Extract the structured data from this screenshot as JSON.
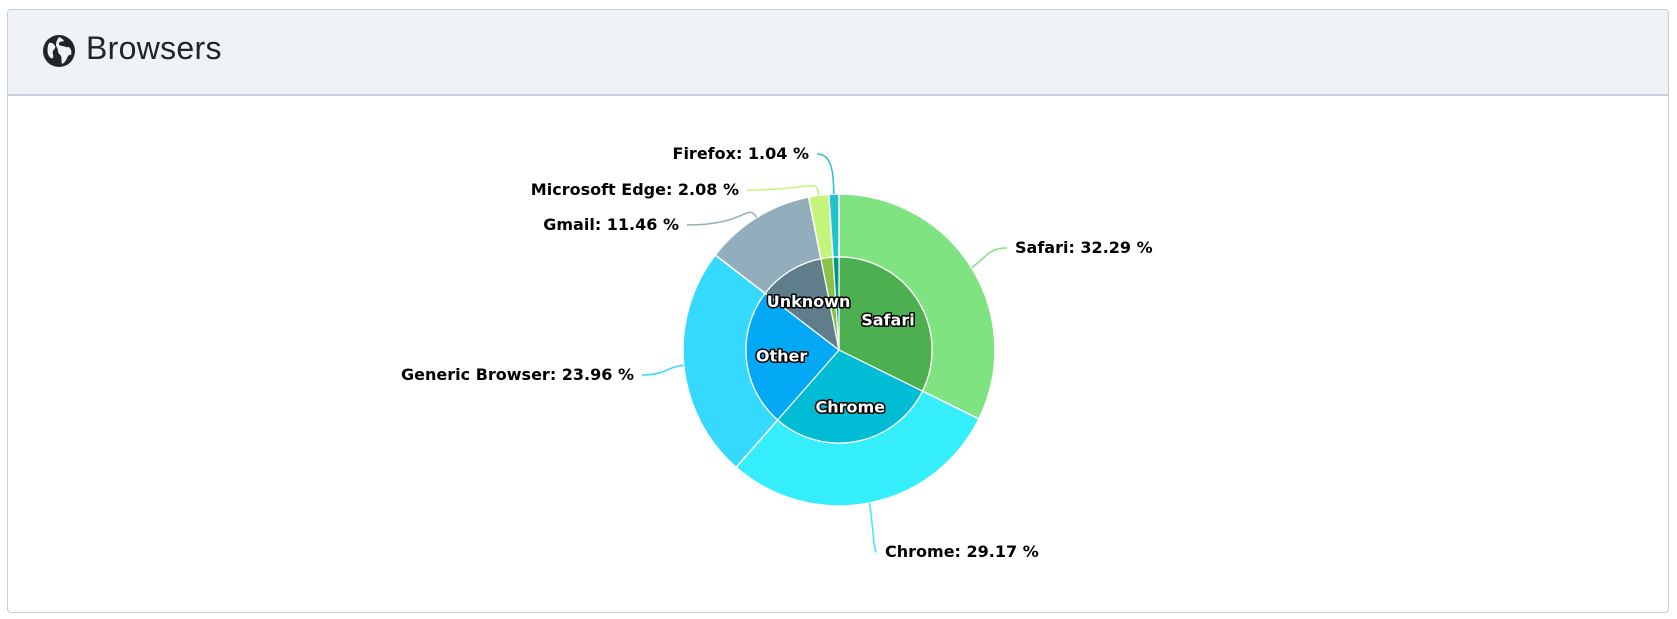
{
  "header": {
    "title": "Browsers",
    "icon": "globe-icon"
  },
  "chart_data": {
    "type": "pie",
    "variant": "nested-donut",
    "outer": {
      "unit": "%",
      "slices": [
        {
          "name": "Safari",
          "label": "Safari: 32.29 %",
          "value": 32.29,
          "color": "#7fe381"
        },
        {
          "name": "Chrome",
          "label": "Chrome: 29.17 %",
          "value": 29.17,
          "color": "#35eefc"
        },
        {
          "name": "Generic Browser",
          "label": "Generic Browser: 23.96 %",
          "value": 23.96,
          "color": "#35d9fe"
        },
        {
          "name": "Gmail",
          "label": "Gmail: 11.46 %",
          "value": 11.46,
          "color": "#92aebc"
        },
        {
          "name": "Microsoft Edge",
          "label": "Microsoft Edge: 2.08 %",
          "value": 2.08,
          "color": "#c3f57b"
        },
        {
          "name": "Firefox",
          "label": "Firefox: 1.04 %",
          "value": 1.04,
          "color": "#22c4cc"
        }
      ]
    },
    "inner": {
      "slices": [
        {
          "name": "Safari",
          "label": "Safari",
          "value": 32.29,
          "color": "#4caf50"
        },
        {
          "name": "Chrome",
          "label": "Chrome",
          "value": 29.17,
          "color": "#00bcd4"
        },
        {
          "name": "Other",
          "label": "Other",
          "value": 23.96,
          "color": "#03a9f4"
        },
        {
          "name": "Unknown",
          "label": "Unknown",
          "value": 11.46,
          "color": "#607d8b"
        },
        {
          "name": "Edge",
          "label": "",
          "value": 2.08,
          "color": "#8bc34a"
        },
        {
          "name": "Firefox",
          "label": "",
          "value": 1.04,
          "color": "#009688"
        }
      ]
    }
  }
}
